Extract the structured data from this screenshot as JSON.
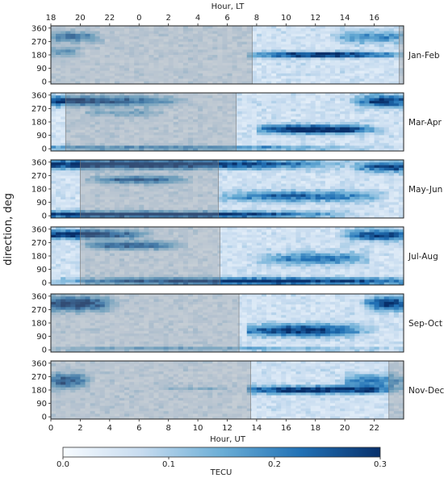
{
  "chart_data": {
    "type": "heatmap",
    "top_axis_label": "Hour, LT",
    "top_ticks": [
      "18",
      "20",
      "22",
      "0",
      "2",
      "4",
      "6",
      "8",
      "10",
      "12",
      "14",
      "16"
    ],
    "bottom_axis_label": "Hour, UT",
    "bottom_ticks": [
      "0",
      "2",
      "4",
      "6",
      "8",
      "10",
      "12",
      "14",
      "16",
      "18",
      "20",
      "22"
    ],
    "ylabel": "direction, deg",
    "y_ticks": [
      "360",
      "270",
      "180",
      "90",
      "0"
    ],
    "ut_range": [
      0,
      24
    ],
    "direction_range": [
      -15,
      375
    ],
    "colorbar": {
      "label": "TECU",
      "ticks": [
        "0.0",
        "0.1",
        "0.2",
        "0.3"
      ],
      "range": [
        0,
        0.3
      ],
      "colors": [
        "#f7fbff",
        "#c6dbef",
        "#6baed6",
        "#2171b5",
        "#08306b"
      ]
    },
    "panels": [
      {
        "label": "Jan-Feb",
        "night_ut": [
          [
            0,
            13.7
          ],
          [
            23.7,
            24
          ]
        ],
        "features": [
          {
            "ut": [
              14,
              23.5
            ],
            "center_ut": 18.5,
            "dir": 180,
            "dir_width": 18,
            "tecu": 0.29
          },
          {
            "ut": [
              0,
              3.5
            ],
            "center_ut": 1.5,
            "dir": 300,
            "dir_width": 35,
            "tecu": 0.16
          },
          {
            "ut": [
              0,
              2.5
            ],
            "center_ut": 0.8,
            "dir": 200,
            "dir_width": 30,
            "tecu": 0.12
          },
          {
            "ut": [
              19,
              24
            ],
            "center_ut": 22,
            "dir": 300,
            "dir_width": 40,
            "tecu": 0.14
          }
        ]
      },
      {
        "label": "Mar-Apr",
        "night_ut": [
          [
            1,
            12.6
          ]
        ],
        "features": [
          {
            "ut": [
              14.5,
              22
            ],
            "center_ut": 18,
            "dir": 130,
            "dir_width": 30,
            "tecu": 0.28
          },
          {
            "ut": [
              0,
              12
            ],
            "center_ut": 2,
            "dir": 320,
            "dir_width": 32,
            "tecu": 0.24
          },
          {
            "ut": [
              0,
              24
            ],
            "center_ut": 8,
            "dir": 5,
            "dir_width": 15,
            "tecu": 0.16
          },
          {
            "ut": [
              20,
              24
            ],
            "center_ut": 22.8,
            "dir": 320,
            "dir_width": 40,
            "tecu": 0.22
          },
          {
            "ut": [
              3,
              8
            ],
            "center_ut": 5,
            "dir": 240,
            "dir_width": 25,
            "tecu": 0.09
          }
        ]
      },
      {
        "label": "May-Jun",
        "night_ut": [
          [
            2,
            11.4
          ]
        ],
        "features": [
          {
            "ut": [
              0,
              24
            ],
            "center_ut": 6,
            "dir": 345,
            "dir_width": 30,
            "tecu": 0.28
          },
          {
            "ut": [
              0,
              24
            ],
            "center_ut": 6,
            "dir": 8,
            "dir_width": 20,
            "tecu": 0.29
          },
          {
            "ut": [
              3,
              9
            ],
            "center_ut": 6,
            "dir": 240,
            "dir_width": 25,
            "tecu": 0.2
          },
          {
            "ut": [
              12,
              22
            ],
            "center_ut": 17,
            "dir": 130,
            "dir_width": 35,
            "tecu": 0.18
          },
          {
            "ut": [
              20,
              24
            ],
            "center_ut": 23,
            "dir": 330,
            "dir_width": 35,
            "tecu": 0.22
          }
        ]
      },
      {
        "label": "Jul-Aug",
        "night_ut": [
          [
            2,
            11.5
          ]
        ],
        "features": [
          {
            "ut": [
              0,
              8
            ],
            "center_ut": 2,
            "dir": 325,
            "dir_width": 30,
            "tecu": 0.27
          },
          {
            "ut": [
              3,
              9
            ],
            "center_ut": 5.5,
            "dir": 250,
            "dir_width": 25,
            "tecu": 0.22
          },
          {
            "ut": [
              0,
              24
            ],
            "center_ut": 14,
            "dir": 10,
            "dir_width": 22,
            "tecu": 0.27
          },
          {
            "ut": [
              14,
              21
            ],
            "center_ut": 18,
            "dir": 160,
            "dir_width": 40,
            "tecu": 0.16
          },
          {
            "ut": [
              19,
              24
            ],
            "center_ut": 22.5,
            "dir": 320,
            "dir_width": 35,
            "tecu": 0.23
          }
        ]
      },
      {
        "label": "Sep-Oct",
        "night_ut": [
          [
            0,
            12.8
          ]
        ],
        "features": [
          {
            "ut": [
              0,
              5
            ],
            "center_ut": 1.5,
            "dir": 310,
            "dir_width": 45,
            "tecu": 0.27
          },
          {
            "ut": [
              14,
              22
            ],
            "center_ut": 17,
            "dir": 130,
            "dir_width": 40,
            "tecu": 0.24
          },
          {
            "ut": [
              21,
              24
            ],
            "center_ut": 23,
            "dir": 310,
            "dir_width": 45,
            "tecu": 0.25
          },
          {
            "ut": [
              0,
              24
            ],
            "center_ut": 10,
            "dir": 5,
            "dir_width": 12,
            "tecu": 0.12
          }
        ]
      },
      {
        "label": "Nov-Dec",
        "night_ut": [
          [
            0,
            13.6
          ],
          [
            23,
            24
          ]
        ],
        "features": [
          {
            "ut": [
              14,
              24
            ],
            "center_ut": 18,
            "dir": 180,
            "dir_width": 25,
            "tecu": 0.28
          },
          {
            "ut": [
              0,
              3
            ],
            "center_ut": 1,
            "dir": 240,
            "dir_width": 50,
            "tecu": 0.2
          },
          {
            "ut": [
              20,
              24
            ],
            "center_ut": 22,
            "dir": 240,
            "dir_width": 45,
            "tecu": 0.16
          },
          {
            "ut": [
              8,
              12
            ],
            "center_ut": 10,
            "dir": 190,
            "dir_width": 12,
            "tecu": 0.08
          }
        ]
      }
    ]
  }
}
